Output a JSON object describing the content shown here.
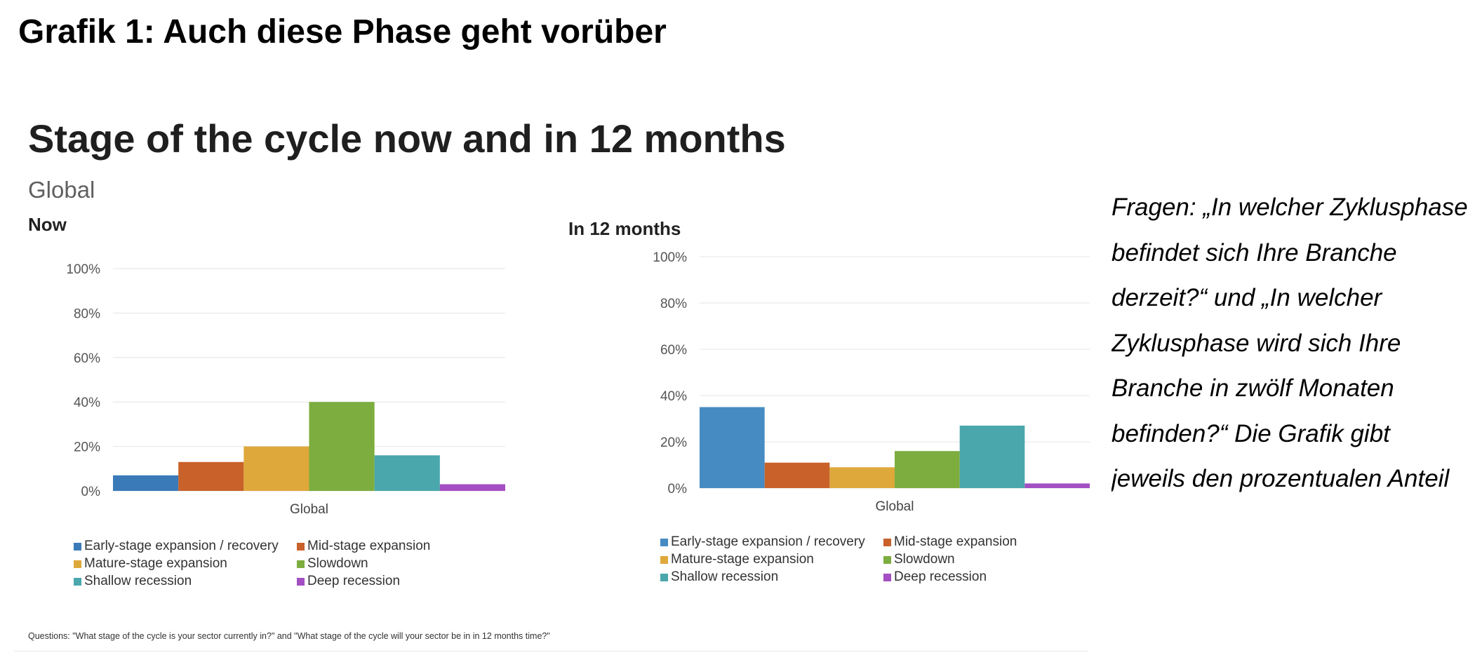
{
  "page": {
    "heading": "Grafik 1: Auch diese Phase geht vorüber",
    "title": "Stage of the cycle now and in 12 months",
    "subtitle": "Global",
    "footnote": "Questions: \"What stage of the cycle is your sector currently in?\" and \"What stage of the cycle will your sector be in in 12 months time?\"",
    "side_text": [
      "Fragen: „In welcher Zyklusphase",
      "befindet sich Ihre Branche",
      "derzeit?“ und „In welcher",
      "Zyklusphase wird sich Ihre",
      "Branche in zwölf Monaten",
      "befinden?“ Die Grafik gibt",
      "jeweils den prozentualen Anteil"
    ]
  },
  "chart_data": [
    {
      "type": "bar",
      "title": "Now",
      "categories": [
        "Global"
      ],
      "yticks": [
        "0%",
        "20%",
        "40%",
        "60%",
        "80%",
        "100%"
      ],
      "ylim": [
        0,
        100
      ],
      "grid": true,
      "legend_position": "bottom",
      "series": [
        {
          "name": "Early-stage expansion / recovery",
          "color": "#3a7ab8",
          "values": [
            7
          ]
        },
        {
          "name": "Mid-stage expansion",
          "color": "#c9622a",
          "values": [
            13
          ]
        },
        {
          "name": "Mature-stage expansion",
          "color": "#dea93a",
          "values": [
            20
          ]
        },
        {
          "name": "Slowdown",
          "color": "#7cad3e",
          "values": [
            40
          ]
        },
        {
          "name": "Shallow recession",
          "color": "#4aa8ad",
          "values": [
            16
          ]
        },
        {
          "name": "Deep recession",
          "color": "#a44ec4",
          "values": [
            3
          ]
        }
      ]
    },
    {
      "type": "bar",
      "title": "In 12 months",
      "categories": [
        "Global"
      ],
      "yticks": [
        "0%",
        "20%",
        "40%",
        "60%",
        "80%",
        "100%"
      ],
      "ylim": [
        0,
        100
      ],
      "grid": true,
      "legend_position": "bottom",
      "series": [
        {
          "name": "Early-stage expansion / recovery",
          "color": "#468cc2",
          "values": [
            35
          ]
        },
        {
          "name": "Mid-stage expansion",
          "color": "#c9622a",
          "values": [
            11
          ]
        },
        {
          "name": "Mature-stage expansion",
          "color": "#dea93a",
          "values": [
            9
          ]
        },
        {
          "name": "Slowdown",
          "color": "#7cad3e",
          "values": [
            16
          ]
        },
        {
          "name": "Shallow recession",
          "color": "#4aa8ad",
          "values": [
            27
          ]
        },
        {
          "name": "Deep recession",
          "color": "#a44ec4",
          "values": [
            2
          ]
        }
      ]
    }
  ]
}
